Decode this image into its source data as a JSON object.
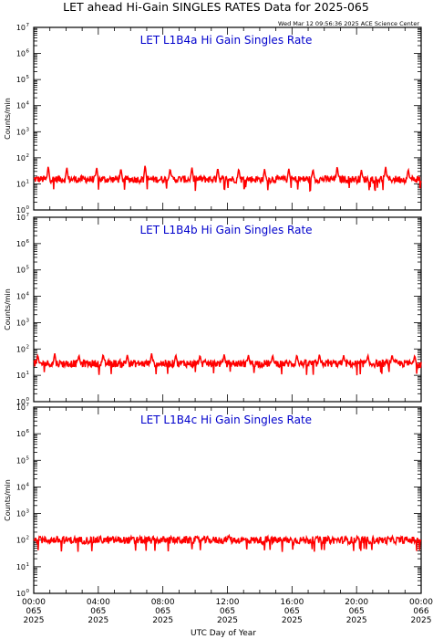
{
  "title": "LET ahead Hi-Gain SINGLES RATES Data for 2025-065",
  "timestamp": "Wed Mar 12 09:56:36 2025 ACE Science Center",
  "xlabel": "UTC Day of Year",
  "colors": {
    "series": "#ff0000",
    "panel_title": "#0000cc",
    "axes": "#000000"
  },
  "chart_data": [
    {
      "type": "line",
      "title": "LET L1B4a Hi Gain Singles Rate",
      "ylabel": "Counts/min",
      "yscale": "log",
      "ylim": [
        1,
        10000000
      ],
      "ytick_labels": [
        "10",
        "10",
        "10",
        "10",
        "10",
        "10",
        "10",
        "10"
      ],
      "ytick_exponents": [
        "0",
        "1",
        "2",
        "3",
        "4",
        "5",
        "6",
        "7"
      ],
      "x_hours": [
        0,
        24
      ],
      "baseline": 15,
      "spikes": [
        {
          "hour": 0.9,
          "value": 50
        },
        {
          "hour": 2.05,
          "value": 45
        },
        {
          "hour": 3.9,
          "value": 45
        },
        {
          "hour": 5.4,
          "value": 40
        },
        {
          "hour": 6.9,
          "value": 55
        },
        {
          "hour": 8.45,
          "value": 40
        },
        {
          "hour": 9.8,
          "value": 45
        },
        {
          "hour": 11.4,
          "value": 42
        },
        {
          "hour": 12.7,
          "value": 40
        },
        {
          "hour": 14.3,
          "value": 38
        },
        {
          "hour": 15.8,
          "value": 40
        },
        {
          "hour": 17.3,
          "value": 38
        },
        {
          "hour": 18.8,
          "value": 50
        },
        {
          "hour": 20.3,
          "value": 35
        },
        {
          "hour": 21.8,
          "value": 48
        },
        {
          "hour": 23.2,
          "value": 38
        }
      ]
    },
    {
      "type": "line",
      "title": "LET L1B4b Hi Gain Singles Rate",
      "ylabel": "Counts/min",
      "yscale": "log",
      "ylim": [
        1,
        10000000
      ],
      "ytick_labels": [
        "10",
        "10",
        "10",
        "10",
        "10",
        "10",
        "10",
        "10"
      ],
      "ytick_exponents": [
        "0",
        "1",
        "2",
        "3",
        "4",
        "5",
        "6",
        "7"
      ],
      "x_hours": [
        0,
        24
      ],
      "baseline": 28,
      "spikes": [
        {
          "hour": 0.25,
          "value": 60
        },
        {
          "hour": 1.3,
          "value": 70
        },
        {
          "hour": 2.8,
          "value": 60
        },
        {
          "hour": 4.3,
          "value": 65
        },
        {
          "hour": 5.8,
          "value": 62
        },
        {
          "hour": 7.3,
          "value": 70
        },
        {
          "hour": 8.8,
          "value": 62
        },
        {
          "hour": 10.3,
          "value": 60
        },
        {
          "hour": 11.8,
          "value": 65
        },
        {
          "hour": 13.3,
          "value": 60
        },
        {
          "hour": 14.8,
          "value": 60
        },
        {
          "hour": 16.3,
          "value": 62
        },
        {
          "hour": 17.7,
          "value": 65
        },
        {
          "hour": 19.2,
          "value": 58
        },
        {
          "hour": 20.7,
          "value": 60
        },
        {
          "hour": 22.2,
          "value": 62
        },
        {
          "hour": 23.6,
          "value": 58
        }
      ]
    },
    {
      "type": "line",
      "title": "LET L1B4c Hi Gain Singles Rate",
      "ylabel": "Counts/min",
      "yscale": "log",
      "ylim": [
        1,
        10000000
      ],
      "ytick_labels": [
        "10",
        "10",
        "10",
        "10",
        "10",
        "10",
        "10",
        "10"
      ],
      "ytick_exponents": [
        "0",
        "1",
        "2",
        "3",
        "4",
        "5",
        "6",
        "7"
      ],
      "x_hours": [
        0,
        24
      ],
      "baseline": 100,
      "spikes": [
        {
          "hour": 0.4,
          "value": 140
        },
        {
          "hour": 12.1,
          "value": 150
        },
        {
          "hour": 17.5,
          "value": 130
        }
      ]
    }
  ],
  "x_ticks": [
    {
      "time": "00:00",
      "day": "065",
      "year": "2025"
    },
    {
      "time": "04:00",
      "day": "065",
      "year": "2025"
    },
    {
      "time": "08:00",
      "day": "065",
      "year": "2025"
    },
    {
      "time": "12:00",
      "day": "065",
      "year": "2025"
    },
    {
      "time": "16:00",
      "day": "065",
      "year": "2025"
    },
    {
      "time": "20:00",
      "day": "065",
      "year": "2025"
    },
    {
      "time": "00:00",
      "day": "066",
      "year": "2025"
    }
  ]
}
